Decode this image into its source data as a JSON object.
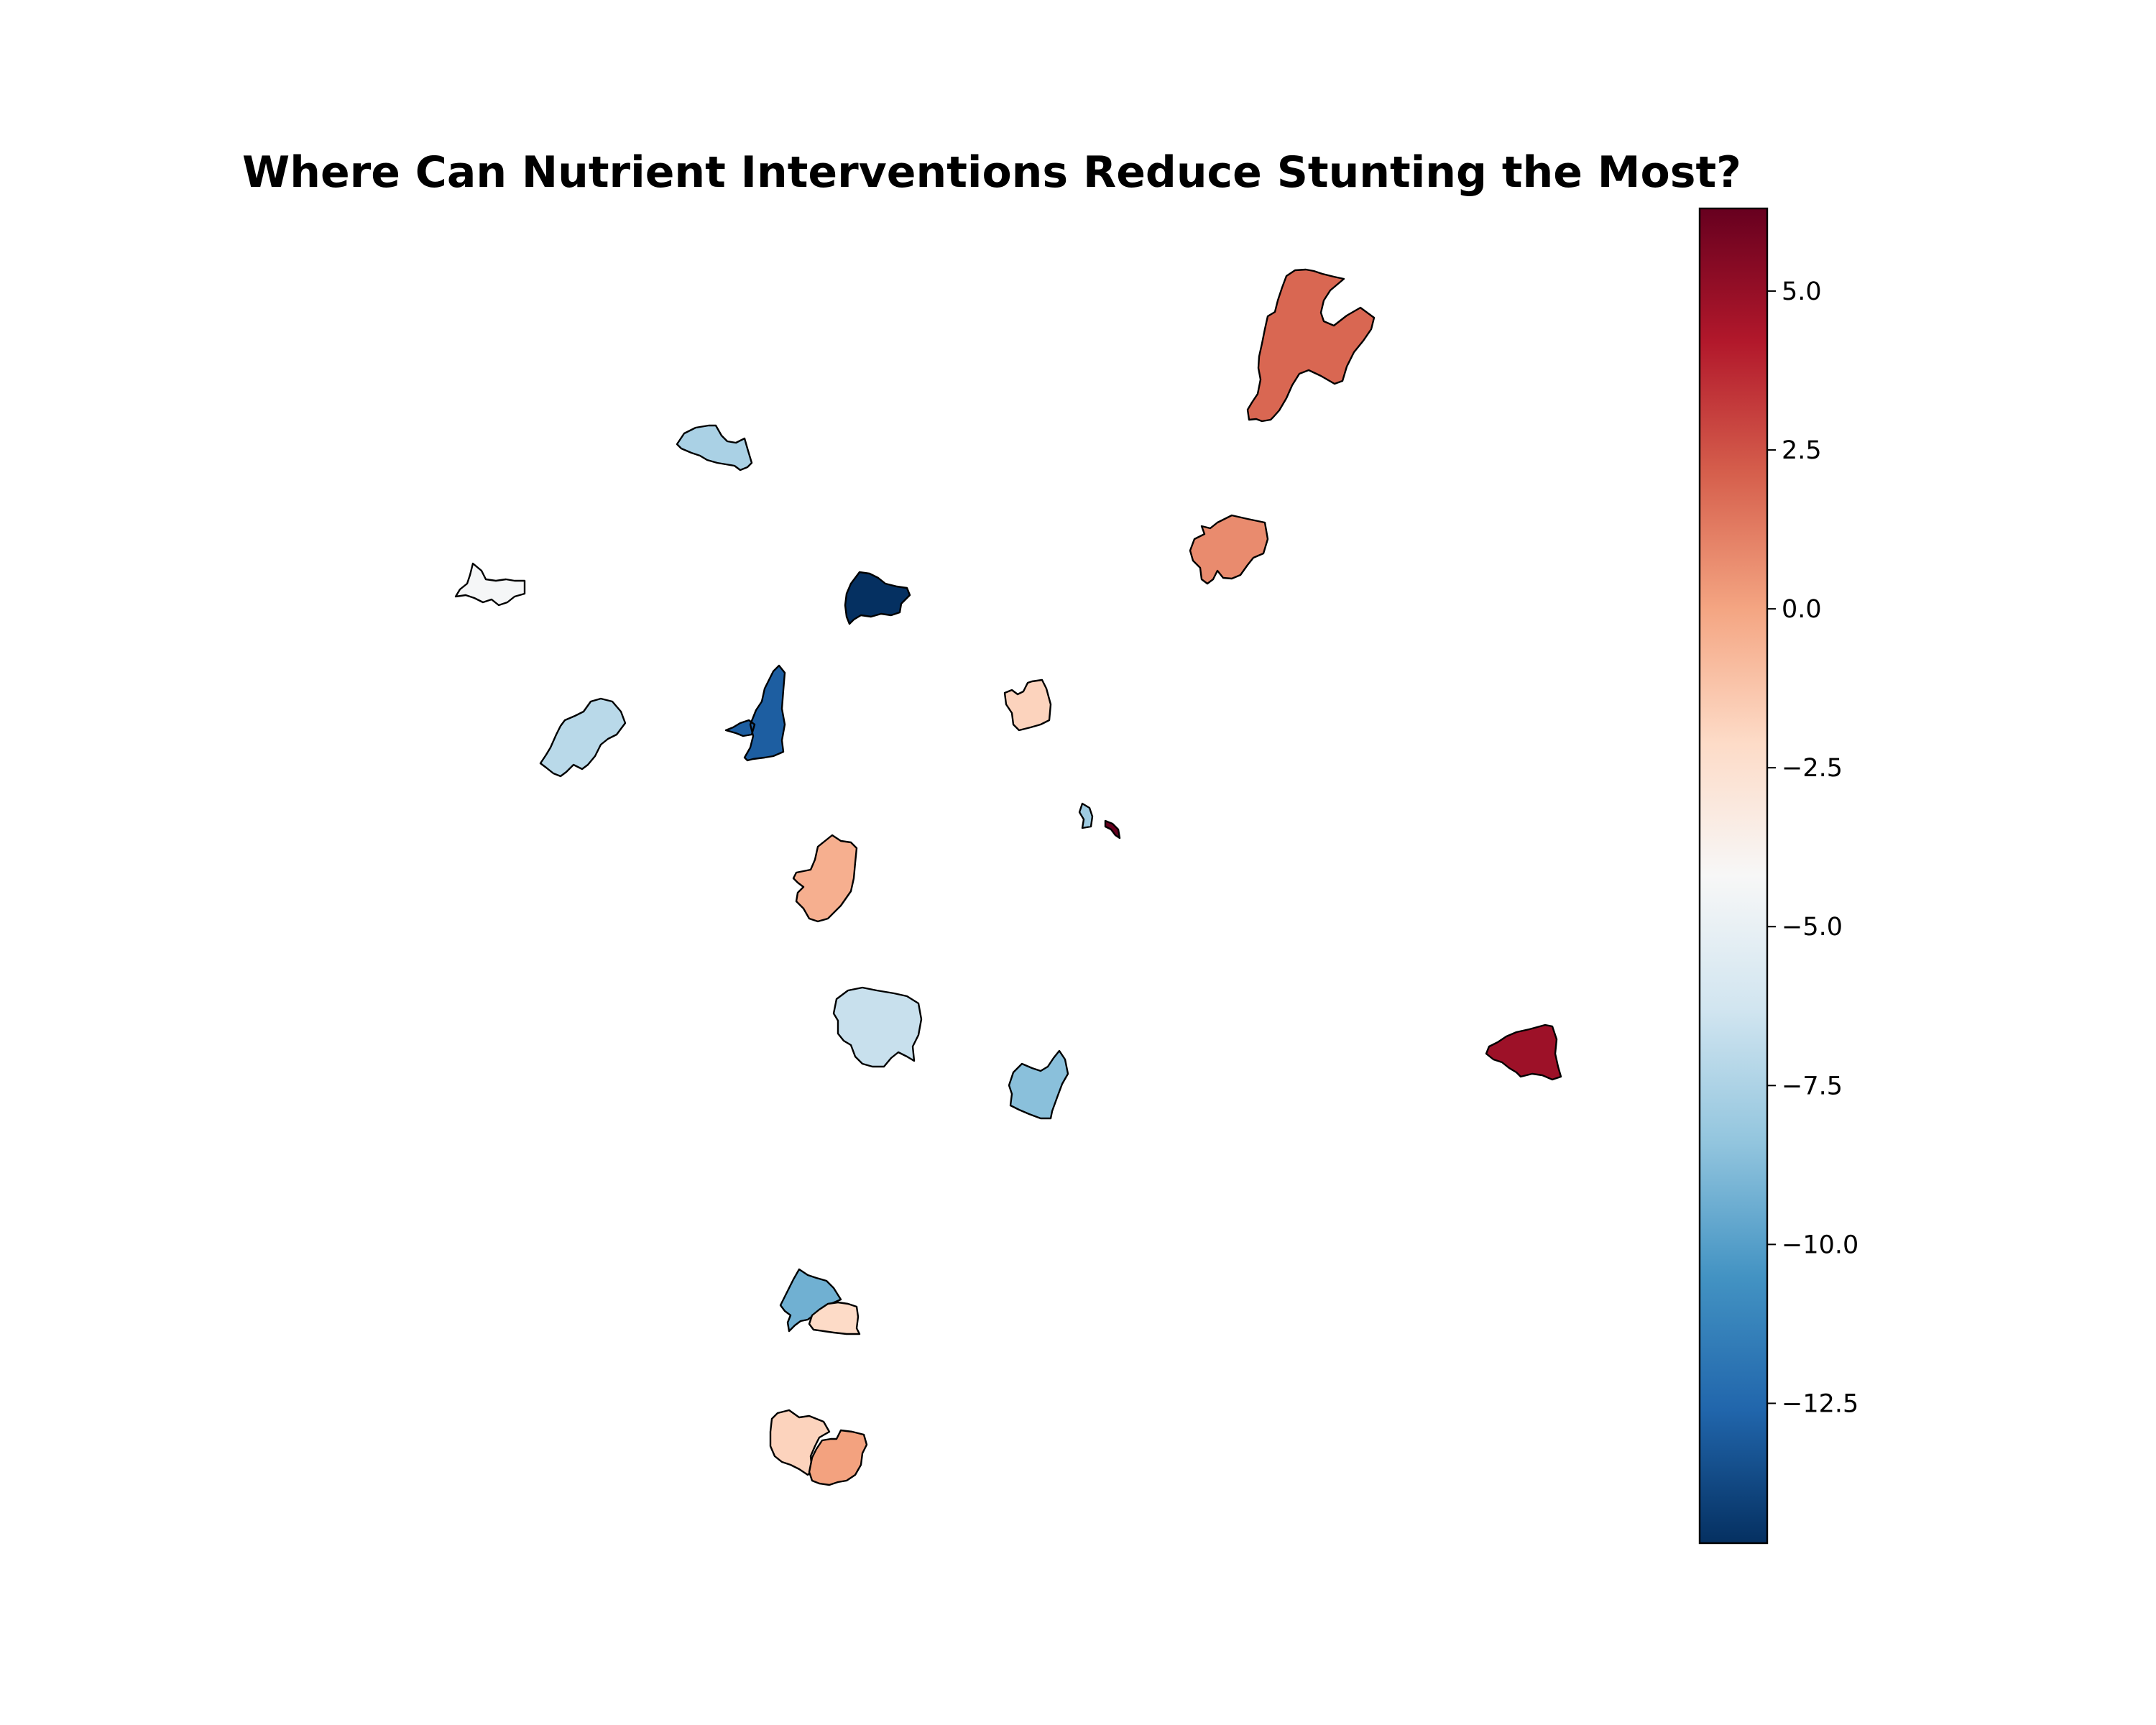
{
  "title": "Where Can Nutrient Interventions Reduce Stunting the Most?",
  "colormap": {
    "name": "RdBu_r",
    "min": -14.7,
    "max": 6.3,
    "stops": [
      "#053061",
      "#2166ac",
      "#4393c3",
      "#92c5de",
      "#d1e5f0",
      "#f7f7f7",
      "#fddbc7",
      "#f4a582",
      "#d6604d",
      "#b2182b",
      "#67001f"
    ],
    "ticks": [
      "5.0",
      "2.5",
      "0.0",
      "−2.5",
      "−5.0",
      "−7.5",
      "−10.0",
      "−12.5"
    ],
    "tick_values": [
      5.0,
      2.5,
      0.0,
      -2.5,
      -5.0,
      -7.5,
      -10.0,
      -12.5
    ]
  },
  "regions": [
    {
      "id": "region-1",
      "value": 1.9
    },
    {
      "id": "region-2",
      "value": 0.8
    },
    {
      "id": "region-3",
      "value": -7.6
    },
    {
      "id": "region-4",
      "value": -4.3
    },
    {
      "id": "region-5",
      "value": -14.7
    },
    {
      "id": "region-6",
      "value": -7.1
    },
    {
      "id": "region-7",
      "value": -12.9
    },
    {
      "id": "region-8",
      "value": -1.8
    },
    {
      "id": "region-9",
      "value": -8.0
    },
    {
      "id": "region-10",
      "value": 6.3
    },
    {
      "id": "region-11",
      "value": -0.4
    },
    {
      "id": "region-12",
      "value": -6.6
    },
    {
      "id": "region-13",
      "value": -8.6
    },
    {
      "id": "region-14",
      "value": 4.8
    },
    {
      "id": "region-15",
      "value": -9.3
    },
    {
      "id": "region-16",
      "value": -2.1
    },
    {
      "id": "region-17",
      "value": -1.8
    },
    {
      "id": "region-18",
      "value": 0.1
    }
  ]
}
